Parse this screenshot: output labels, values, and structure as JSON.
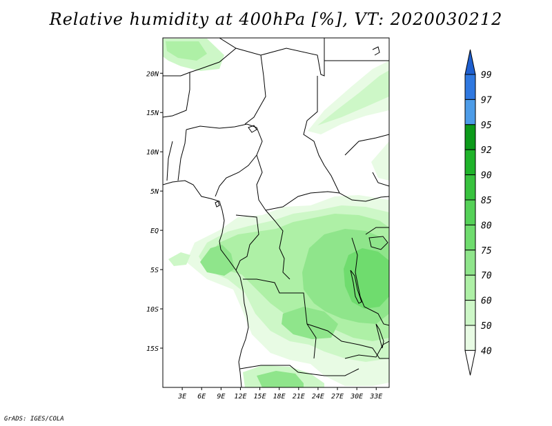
{
  "title": "Relative humidity at 400hPa [%], VT: 2020030212",
  "credit": "GrADS: IGES/COLA",
  "map": {
    "lon_range": [
      0,
      35
    ],
    "lat_range": [
      -20,
      24.5
    ],
    "x_ticks": [
      "3E",
      "6E",
      "9E",
      "12E",
      "15E",
      "18E",
      "21E",
      "24E",
      "27E",
      "30E",
      "33E"
    ],
    "x_tick_values": [
      3,
      6,
      9,
      12,
      15,
      18,
      21,
      24,
      27,
      30,
      33
    ],
    "y_ticks": [
      "20N",
      "15N",
      "10N",
      "5N",
      "EQ",
      "5S",
      "10S",
      "15S"
    ],
    "y_tick_values": [
      20,
      15,
      10,
      5,
      0,
      -5,
      -10,
      -15
    ]
  },
  "colorbar": {
    "levels": [
      "99",
      "97",
      "95",
      "92",
      "90",
      "85",
      "80",
      "75",
      "70",
      "60",
      "50",
      "40"
    ],
    "colors": [
      "#1e5fcf",
      "#2f78e0",
      "#4d9ce8",
      "#0c9a1a",
      "#1fb32a",
      "#38c23e",
      "#55d158",
      "#6fdc6e",
      "#8fe58b",
      "#aef0a6",
      "#cdf7c7",
      "#e8fbe4",
      "#ffffff"
    ]
  },
  "humidity_colors": {
    "light": "#e8fbe4",
    "pale": "#cdf7c7",
    "mid": "#aef0a6",
    "green": "#8fe58b",
    "strong": "#6fdc6e"
  }
}
